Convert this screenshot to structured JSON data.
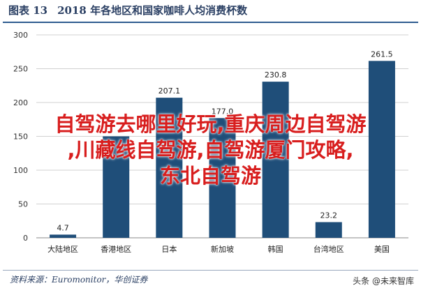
{
  "figure": {
    "label": "图表 13",
    "title": "2018 年各地区和国家咖啡人均消费杯数"
  },
  "source": "资料来源：Euromonitor，华创证券",
  "watermark": "头条 @未来智库",
  "overlay": {
    "line1": "自驾游去哪里好玩,重庆周边自驾游",
    "line2": ",川藏线自驾游,自驾游厦门攻略,",
    "line3": "东北自驾游"
  },
  "chart_data": {
    "type": "bar",
    "title": "2018 年各地区和国家咖啡人均消费杯数",
    "categories": [
      "大陆地区",
      "香港地区",
      "日本",
      "新加坡",
      "韩国",
      "台湾地区",
      "美国"
    ],
    "values": [
      4.7,
      150,
      207.1,
      177.0,
      230.8,
      23.2,
      261.5
    ],
    "data_labels": [
      "4.7",
      "",
      "207.1",
      "177.0",
      "230.8",
      "23.2",
      "261.5"
    ],
    "ylim": [
      0,
      300
    ],
    "yticks": [
      "0",
      "50",
      "100",
      "150",
      "200",
      "250",
      "300"
    ],
    "ytick_values": [
      0,
      50,
      100,
      150,
      200,
      250,
      300
    ],
    "grid": true,
    "bar_color": "#1f4e79"
  }
}
